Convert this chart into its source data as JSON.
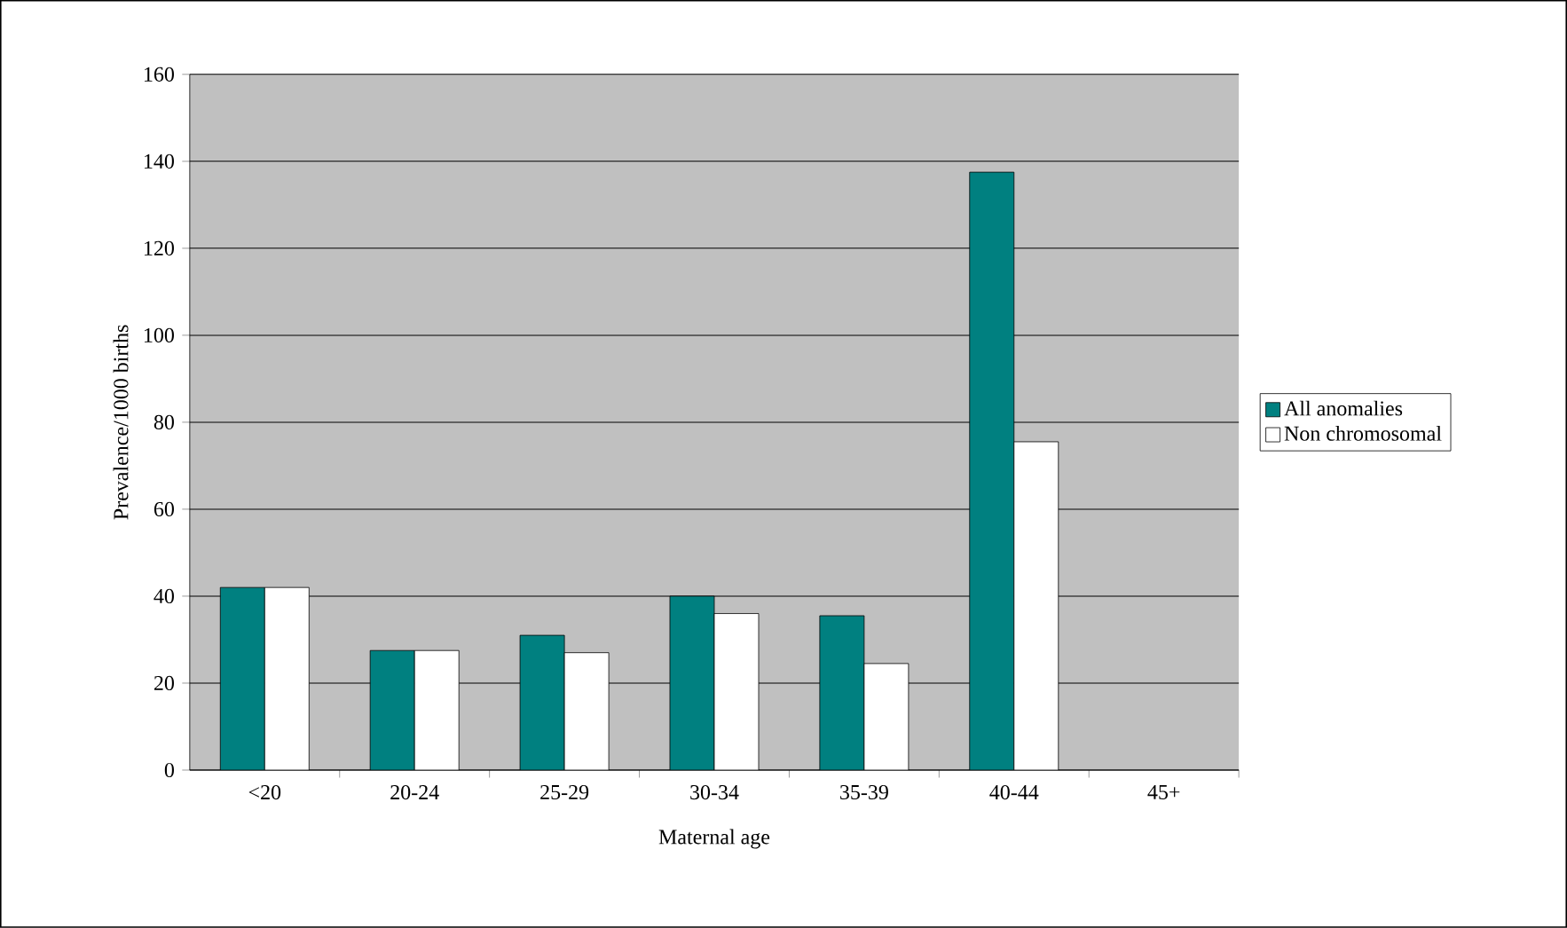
{
  "chart_data": {
    "type": "bar",
    "xlabel": "Maternal age",
    "ylabel": "Prevalence/1000 births",
    "categories": [
      "<20",
      "20-24",
      "25-29",
      "30-34",
      "35-39",
      "40-44",
      "45+"
    ],
    "series": [
      {
        "name": "All anomalies",
        "color": "#008080",
        "values": [
          42,
          27.5,
          31,
          40,
          35.5,
          137.5,
          null
        ]
      },
      {
        "name": "Non chromosomal",
        "color": "#ffffff",
        "values": [
          42,
          27.5,
          27,
          36,
          24.5,
          75.5,
          null
        ]
      }
    ],
    "ylim": [
      0,
      160
    ],
    "yticks": [
      0,
      20,
      40,
      60,
      80,
      100,
      120,
      140,
      160
    ],
    "grid": "y",
    "legend": "right"
  }
}
